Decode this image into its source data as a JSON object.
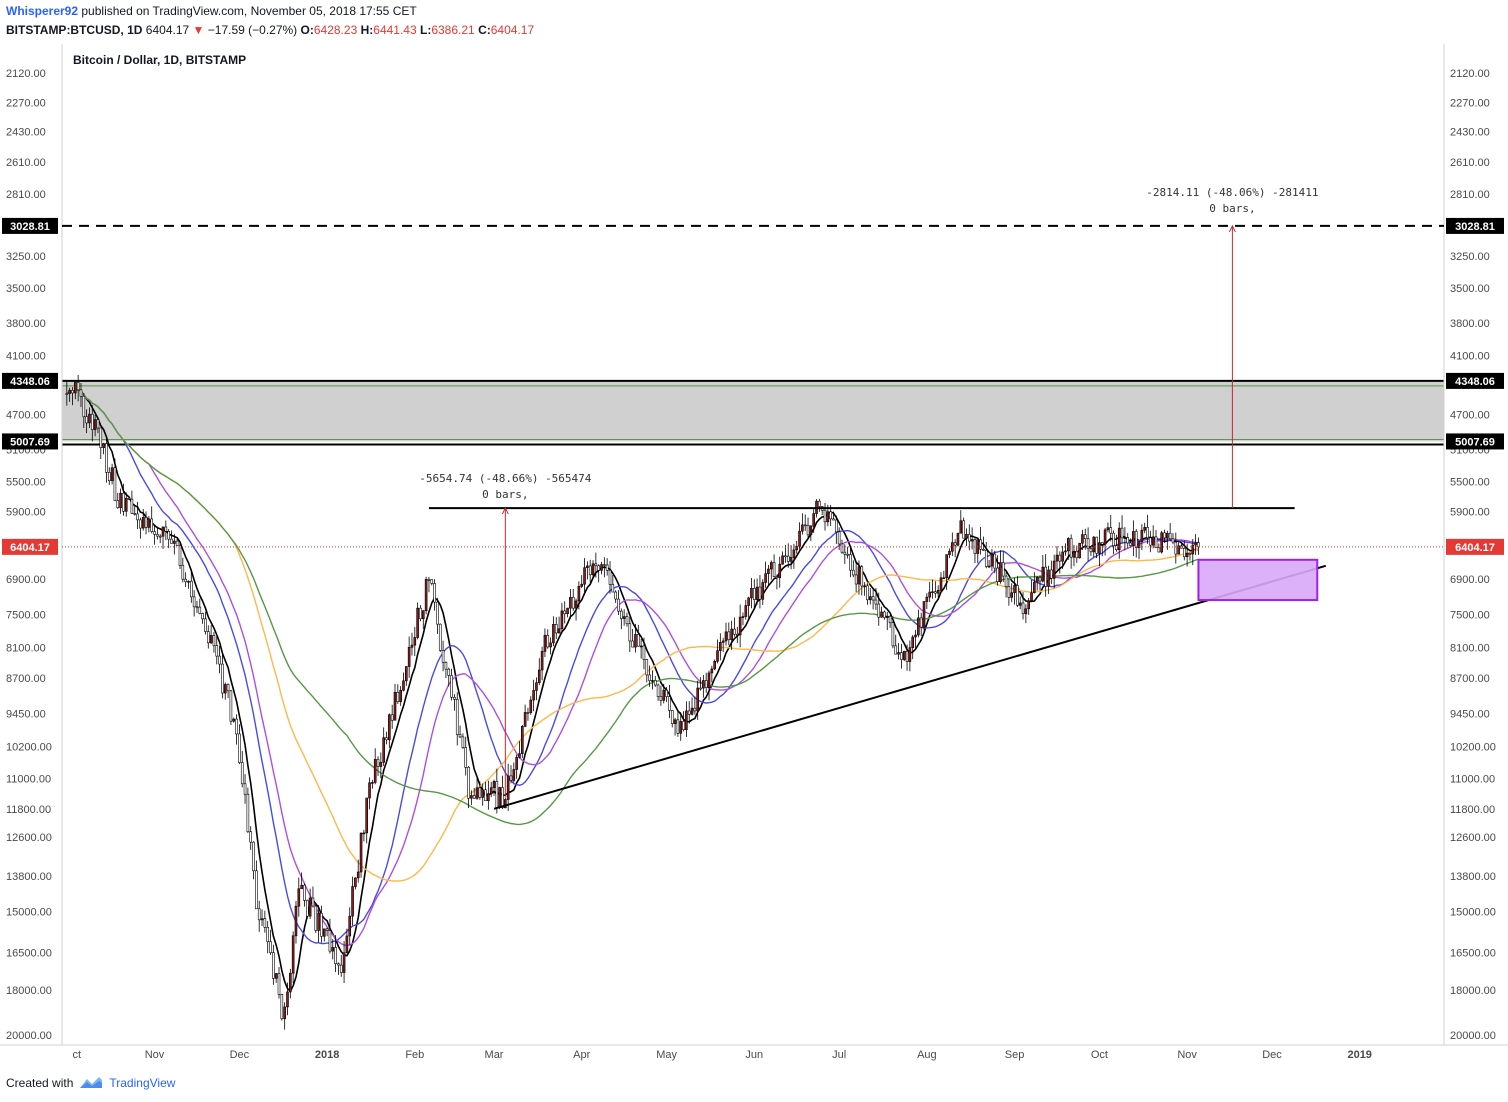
{
  "header": {
    "author": "Whisperer92",
    "published": "published on TradingView.com, November 05, 2018 17:55 CET",
    "symbol": "BITSTAMP:BTCUSD, 1D",
    "price": "6404.17",
    "change": "−17.59 (−0.27%)",
    "o_label": "O:",
    "o_val": "6428.23",
    "h_label": "H:",
    "h_val": "6441.43",
    "l_label": "L:",
    "l_val": "6386.21",
    "c_label": "C:",
    "c_val": "6404.17"
  },
  "footer": {
    "created": "Created with",
    "brand": "TradingView"
  },
  "colors": {
    "up": "#ffffff",
    "down": "#8b1a1a",
    "ma_blue": "#4a4ae6",
    "ma_purple": "#b04ee0",
    "ma_orange": "#ffb74d",
    "ma_green": "#559944",
    "last_price": "#e53935",
    "target": "#c62828",
    "zone": "#d0d0d0",
    "box": "#d8a8f8"
  },
  "chart_data": {
    "type": "candlestick",
    "title": "Bitcoin / Dollar, 1D, BITSTAMP",
    "y_axis": {
      "inverted_log": true,
      "ticks": [
        "2120.00",
        "2270.00",
        "2430.00",
        "2610.00",
        "2810.00",
        "3250.00",
        "3500.00",
        "3800.00",
        "4100.00",
        "4700.00",
        "5100.00",
        "5500.00",
        "5900.00",
        "6900.00",
        "7500.00",
        "8100.00",
        "8700.00",
        "9450.00",
        "10200.00",
        "11000.00",
        "11800.00",
        "12600.00",
        "13800.00",
        "15000.00",
        "16500.00",
        "18000.00",
        "20000.00"
      ]
    },
    "x_axis": {
      "ticks": [
        "ct",
        "Nov",
        "Dec",
        "2018",
        "Feb",
        "Mar",
        "Apr",
        "May",
        "Jun",
        "Jul",
        "Aug",
        "Sep",
        "Oct",
        "Nov",
        "Dec",
        "2019"
      ]
    },
    "price_labels": {
      "last": "6404.17",
      "target": "3028.81",
      "zone_top": "4348.06",
      "zone_bottom": "5007.69"
    },
    "annotations": [
      {
        "line1": "-5654.74 (-48.66%) -565474",
        "line2": "0 bars,"
      },
      {
        "line1": "-2814.11 (-48.06%) -281411",
        "line2": "0 bars,"
      }
    ],
    "series_close": [
      {
        "date": "2017-10-01",
        "close": 4350
      },
      {
        "date": "2017-10-10",
        "close": 4800
      },
      {
        "date": "2017-10-20",
        "close": 5800
      },
      {
        "date": "2017-10-31",
        "close": 6100
      },
      {
        "date": "2017-11-10",
        "close": 6600
      },
      {
        "date": "2017-11-20",
        "close": 7800
      },
      {
        "date": "2017-11-30",
        "close": 9900
      },
      {
        "date": "2017-12-07",
        "close": 14500
      },
      {
        "date": "2017-12-17",
        "close": 19300
      },
      {
        "date": "2017-12-22",
        "close": 14200
      },
      {
        "date": "2018-01-06",
        "close": 17100
      },
      {
        "date": "2018-01-16",
        "close": 11300
      },
      {
        "date": "2018-02-06",
        "close": 6900
      },
      {
        "date": "2018-02-20",
        "close": 11200
      },
      {
        "date": "2018-03-05",
        "close": 11500
      },
      {
        "date": "2018-03-18",
        "close": 8200
      },
      {
        "date": "2018-04-06",
        "close": 6600
      },
      {
        "date": "2018-05-05",
        "close": 9800
      },
      {
        "date": "2018-05-29",
        "close": 7400
      },
      {
        "date": "2018-06-24",
        "close": 5850
      },
      {
        "date": "2018-07-24",
        "close": 8300
      },
      {
        "date": "2018-08-13",
        "close": 6100
      },
      {
        "date": "2018-09-04",
        "close": 7300
      },
      {
        "date": "2018-09-20",
        "close": 6400
      },
      {
        "date": "2018-10-11",
        "close": 6250
      },
      {
        "date": "2018-11-05",
        "close": 6404.17
      }
    ]
  }
}
